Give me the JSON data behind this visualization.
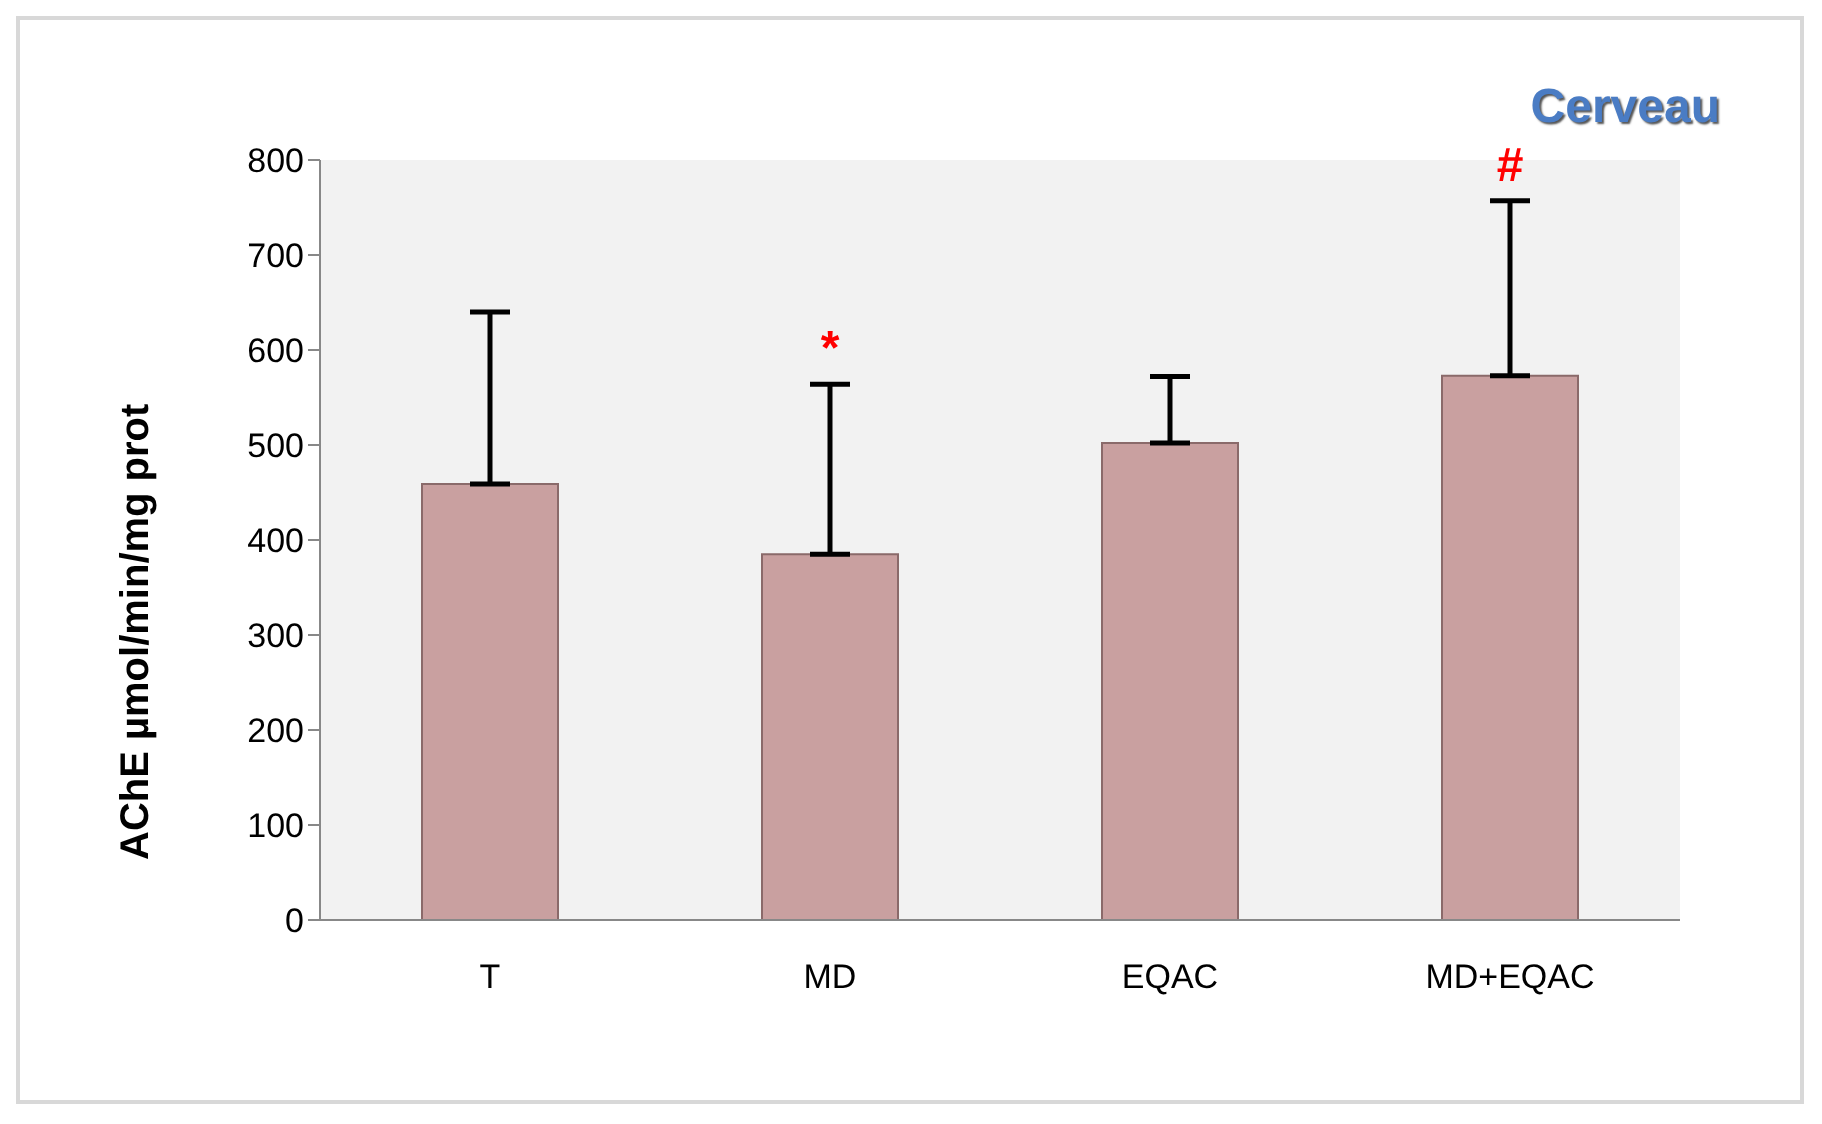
{
  "chart_data": {
    "type": "bar",
    "title": "Cerveau",
    "ylabel": "AChE µmol/min/mg prot",
    "categories": [
      "T",
      "MD",
      "EQAC",
      "MD+EQAC"
    ],
    "values": [
      459,
      385,
      502,
      573
    ],
    "errors": [
      [
        459,
        640
      ],
      [
        385,
        564
      ],
      [
        502,
        572
      ],
      [
        573,
        757
      ]
    ],
    "color": "#c9a0a0",
    "ylim": [
      0,
      800
    ],
    "yticks": [
      0,
      100,
      200,
      300,
      400,
      500,
      600,
      700,
      800
    ],
    "grid": false,
    "annotations": [
      {
        "text": "*",
        "x": "MD",
        "y": 564
      },
      {
        "text": "#",
        "x": "MD+EQAC",
        "y": 757
      }
    ]
  }
}
